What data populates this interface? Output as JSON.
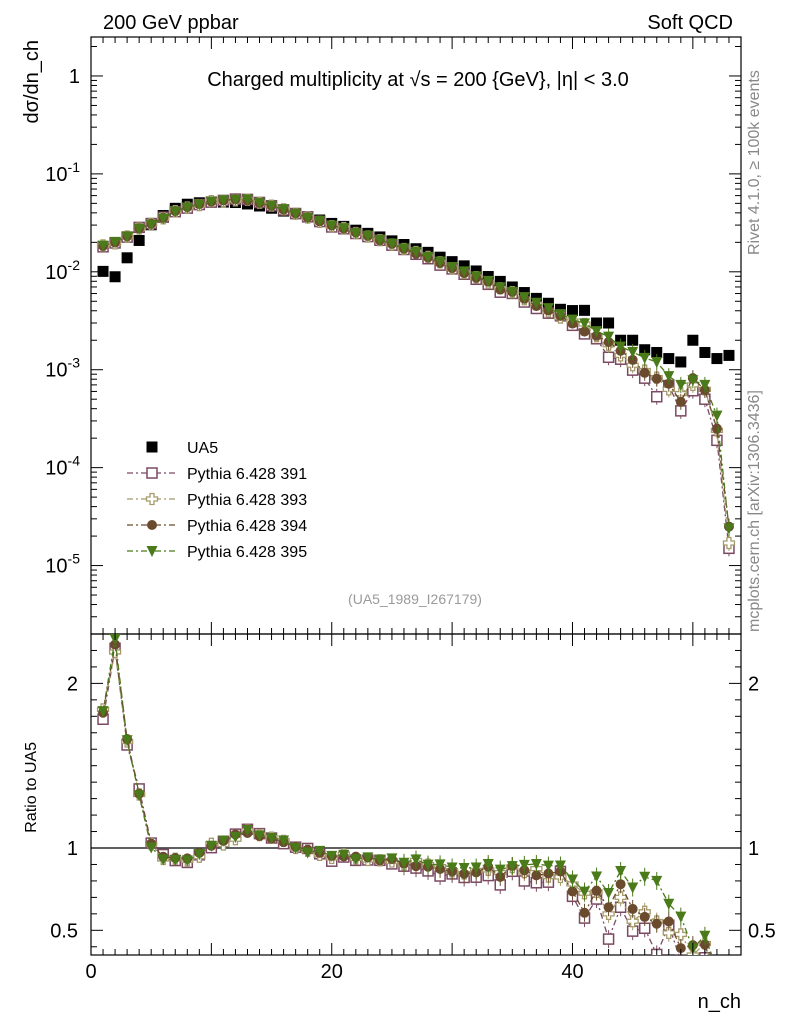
{
  "header": {
    "left": "200 GeV ppbar",
    "right": "Soft QCD"
  },
  "side_labels": {
    "rivet": "Rivet 4.1.0, ≥ 100k events",
    "mcplots": "mcplots.cern.ch [arXiv:1306.3436]"
  },
  "chart_data": {
    "type": "scatter",
    "title": "Charged multiplicity at √s = 200 {GeV}, |η| < 3.0",
    "analysis_tag": "(UA5_1989_I267179)",
    "xlabel": "n_ch",
    "ylabel": "dσ/dn_ch",
    "ratio_ylabel": "Ratio to UA5",
    "xlim": [
      0,
      54
    ],
    "ylim": [
      2e-06,
      2.5
    ],
    "ratio_ylim": [
      0.35,
      2.3
    ],
    "x_ticks": [
      "0",
      "20",
      "40"
    ],
    "y_ticks": [
      "1",
      "10^-1",
      "10^-2",
      "10^-3",
      "10^-4",
      "10^-5"
    ],
    "ratio_ticks": [
      "2",
      "1",
      "0.5"
    ],
    "colors": {
      "UA5": "#000000",
      "391": "#7b4a62",
      "393": "#a59a6a",
      "394": "#6b4b2e",
      "395": "#4a7a1a"
    },
    "x": [
      1,
      2,
      3,
      4,
      5,
      6,
      7,
      8,
      9,
      10,
      11,
      12,
      13,
      14,
      15,
      16,
      17,
      18,
      19,
      20,
      21,
      22,
      23,
      24,
      25,
      26,
      27,
      28,
      29,
      30,
      31,
      32,
      33,
      34,
      35,
      36,
      37,
      38,
      39,
      40,
      41,
      42,
      43,
      44,
      45,
      46,
      47,
      48,
      49,
      50,
      51,
      52,
      53
    ],
    "series": [
      {
        "name": "UA5",
        "marker": "square-filled",
        "values": [
          0.0101,
          0.0089,
          0.0139,
          0.0209,
          0.0302,
          0.0376,
          0.0445,
          0.049,
          0.0507,
          0.0514,
          0.0515,
          0.051,
          0.0493,
          0.047,
          0.0446,
          0.0417,
          0.0392,
          0.0365,
          0.0338,
          0.0312,
          0.0291,
          0.0266,
          0.0247,
          0.0227,
          0.0207,
          0.019,
          0.0172,
          0.0158,
          0.0141,
          0.0127,
          0.0115,
          0.0102,
          0.00895,
          0.00798,
          0.007,
          0.00614,
          0.00535,
          0.00477,
          0.00414,
          0.00402,
          0.00404,
          0.003,
          0.003,
          0.002,
          0.002,
          0.0016,
          0.0015,
          0.0013,
          0.0012,
          0.002,
          0.0015,
          0.0013,
          0.0014
        ]
      },
      {
        "name": "Pythia 6.428 391",
        "marker": "square-open",
        "values": [
          0.018,
          0.0197,
          0.0226,
          0.0284,
          0.0311,
          0.0361,
          0.0411,
          0.0447,
          0.0486,
          0.0515,
          0.0536,
          0.0553,
          0.0549,
          0.0511,
          0.0473,
          0.0428,
          0.0394,
          0.0364,
          0.0326,
          0.0287,
          0.0275,
          0.0246,
          0.0229,
          0.021,
          0.0187,
          0.0169,
          0.0151,
          0.0136,
          0.0117,
          0.0107,
          0.00944,
          0.00839,
          0.00745,
          0.00619,
          0.00601,
          0.00491,
          0.00422,
          0.00378,
          0.00355,
          0.00284,
          0.00232,
          0.00207,
          0.00134,
          0.00128,
          0.00099,
          0.00082,
          0.00053,
          0.00069,
          0.00038,
          0.00061,
          0.0005,
          0.00019,
          1.5e-05
        ]
      },
      {
        "name": "Pythia 6.428 393",
        "marker": "cross-open",
        "values": [
          0.0186,
          0.0195,
          0.0229,
          0.0277,
          0.0309,
          0.0351,
          0.0416,
          0.0453,
          0.048,
          0.0527,
          0.0526,
          0.0537,
          0.0545,
          0.0507,
          0.0474,
          0.0435,
          0.0392,
          0.0359,
          0.0324,
          0.0293,
          0.028,
          0.0249,
          0.0229,
          0.021,
          0.019,
          0.0171,
          0.0159,
          0.0142,
          0.0125,
          0.0109,
          0.00972,
          0.00881,
          0.00776,
          0.00679,
          0.00619,
          0.00524,
          0.00468,
          0.00394,
          0.00341,
          0.00314,
          0.00293,
          0.0022,
          0.0018,
          0.0014,
          0.00111,
          0.00098,
          0.00083,
          0.00063,
          0.00057,
          0.0007,
          0.00063,
          0.00024,
          1.7e-05
        ]
      },
      {
        "name": "Pythia 6.428 394",
        "marker": "circle-filled",
        "values": [
          0.0184,
          0.0199,
          0.0231,
          0.0278,
          0.031,
          0.0356,
          0.0418,
          0.0459,
          0.0492,
          0.0521,
          0.0537,
          0.0552,
          0.0538,
          0.0504,
          0.0472,
          0.0432,
          0.0395,
          0.0361,
          0.0328,
          0.0297,
          0.0276,
          0.0252,
          0.0233,
          0.021,
          0.0193,
          0.0172,
          0.0153,
          0.014,
          0.0123,
          0.0109,
          0.0097,
          0.00869,
          0.00793,
          0.00658,
          0.00624,
          0.00531,
          0.00446,
          0.00403,
          0.00355,
          0.00296,
          0.00245,
          0.00222,
          0.00192,
          0.00156,
          0.00126,
          0.00093,
          0.00081,
          0.00072,
          0.00047,
          0.00082,
          0.00062,
          0.00025,
          2.5e-05
        ]
      },
      {
        "name": "Pythia 6.428 395",
        "marker": "triangle-down",
        "values": [
          0.0185,
          0.0202,
          0.023,
          0.0276,
          0.0303,
          0.035,
          0.0413,
          0.0453,
          0.0488,
          0.0521,
          0.0538,
          0.0544,
          0.0547,
          0.0506,
          0.0473,
          0.0436,
          0.0392,
          0.0355,
          0.0332,
          0.0297,
          0.0279,
          0.0248,
          0.0233,
          0.0211,
          0.0194,
          0.0173,
          0.016,
          0.0142,
          0.0127,
          0.0112,
          0.0101,
          0.00899,
          0.00808,
          0.00693,
          0.00623,
          0.00551,
          0.00483,
          0.00426,
          0.0037,
          0.00325,
          0.00297,
          0.00248,
          0.00218,
          0.00172,
          0.00152,
          0.00132,
          0.0012,
          0.00086,
          0.0007,
          0.00078,
          0.0007,
          0.00034,
          2.4e-05
        ]
      }
    ]
  }
}
